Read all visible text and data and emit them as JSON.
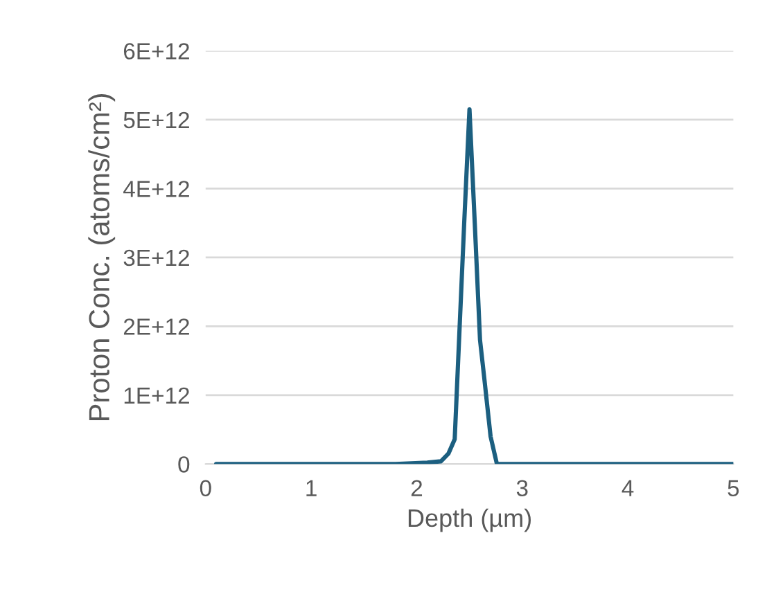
{
  "chart_data": {
    "type": "line",
    "xlabel": "Depth (µm)",
    "ylabel": "Proton Conc. (atoms/cm²)",
    "series": [
      {
        "color": "#1c5f80",
        "x": [
          0.1,
          1.0,
          1.8,
          2.1,
          2.23,
          2.3,
          2.36,
          2.45,
          2.5,
          2.55,
          2.6,
          2.64,
          2.7,
          2.76,
          3.0,
          4.0,
          5.0
        ],
        "values": [
          0,
          0,
          0,
          20000000000.0,
          40000000000.0,
          150000000000.0,
          360000000000.0,
          3500000000000.0,
          5150000000000.0,
          3500000000000.0,
          1800000000000.0,
          1250000000000.0,
          400000000000.0,
          0,
          0,
          0,
          0
        ]
      }
    ],
    "xlim": [
      0,
      5
    ],
    "xticks": [
      0,
      1,
      2,
      3,
      4,
      5
    ],
    "ylim": [
      0,
      6000000000000.0
    ],
    "yticks": [
      {
        "value": 0,
        "label": "0"
      },
      {
        "value": 1000000000000.0,
        "label": "1E+12"
      },
      {
        "value": 2000000000000.0,
        "label": "2E+12"
      },
      {
        "value": 3000000000000.0,
        "label": "3E+12"
      },
      {
        "value": 4000000000000.0,
        "label": "4E+12"
      },
      {
        "value": 5000000000000.0,
        "label": "5E+12"
      },
      {
        "value": 6000000000000.0,
        "label": "6E+12"
      }
    ],
    "grid": "y",
    "marker": "none",
    "line_style": "solid"
  }
}
